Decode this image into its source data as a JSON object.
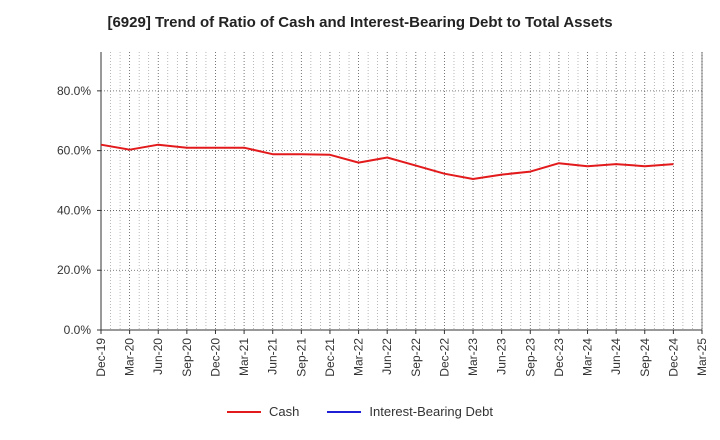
{
  "chart_data": {
    "type": "line",
    "title": "[6929]  Trend of Ratio of Cash and Interest-Bearing Debt to Total Assets",
    "xlabel": "",
    "ylabel": "",
    "ylim": [
      0,
      93
    ],
    "yticks": [
      0,
      20,
      40,
      60,
      80
    ],
    "ytick_labels": [
      "0.0%",
      "20.0%",
      "40.0%",
      "60.0%",
      "80.0%"
    ],
    "x": [
      "Dec-19",
      "Mar-20",
      "Jun-20",
      "Sep-20",
      "Dec-20",
      "Mar-21",
      "Jun-21",
      "Sep-21",
      "Dec-21",
      "Mar-22",
      "Jun-22",
      "Sep-22",
      "Dec-22",
      "Mar-23",
      "Jun-23",
      "Sep-23",
      "Dec-23",
      "Mar-24",
      "Jun-24",
      "Sep-24",
      "Dec-24",
      "Mar-25"
    ],
    "grid": true,
    "legend_position": "bottom-center",
    "series": [
      {
        "name": "Cash",
        "color": "#e31a1c",
        "values": [
          62.0,
          60.3,
          62.0,
          61.0,
          61.0,
          61.0,
          58.8,
          58.8,
          58.6,
          56.0,
          57.7,
          55.0,
          52.3,
          50.5,
          52.0,
          53.0,
          55.8,
          54.8,
          55.5,
          54.8,
          55.5,
          null
        ]
      },
      {
        "name": "Interest-Bearing Debt",
        "color": "#1f1fd6",
        "values": [
          null,
          null,
          null,
          null,
          null,
          null,
          null,
          null,
          null,
          null,
          null,
          null,
          null,
          null,
          null,
          null,
          null,
          null,
          null,
          null,
          null,
          null
        ]
      }
    ]
  }
}
